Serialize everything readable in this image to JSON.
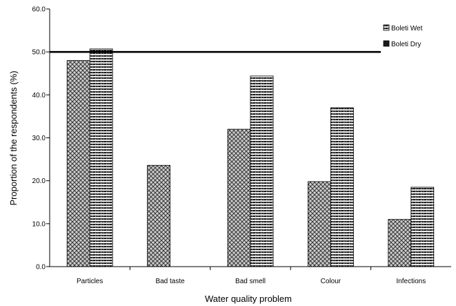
{
  "chart_data": {
    "type": "bar",
    "title": "",
    "xlabel": "Water quality problem",
    "ylabel": "Proportion of the respondents (%)",
    "categories": [
      "Particles",
      "Bad taste",
      "Bad smell",
      "Colour",
      "Infections"
    ],
    "series": [
      {
        "name": "Boleti Dry",
        "values": [
          48.0,
          23.6,
          32.0,
          19.8,
          11.0
        ]
      },
      {
        "name": "Boleti Wet",
        "values": [
          50.7,
          0,
          44.4,
          37.0,
          18.5
        ]
      }
    ],
    "ylim": [
      0,
      60
    ],
    "yticks": [
      "0.0",
      "10.0",
      "20.0",
      "30.0",
      "40.0",
      "50.0",
      "60.0"
    ],
    "reference_line": 50.0,
    "grid": false,
    "legend": {
      "placement": "top-right",
      "items": [
        "Boleti Wet",
        "Boleti Dry"
      ]
    }
  }
}
